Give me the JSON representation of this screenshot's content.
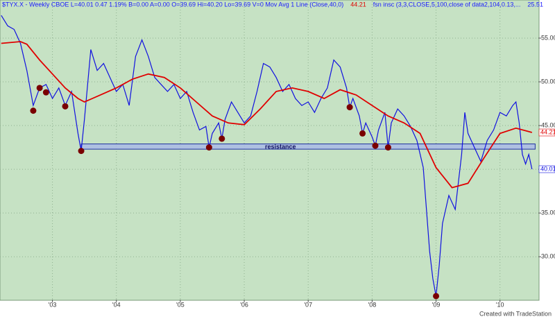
{
  "chart_data": {
    "type": "line",
    "header": [
      {
        "text": "$TYX.X - Weekly  CBOE  L=40.01  0.47  1.19%  B=0.00  A=0.00  O=39.69  Hi=40.20  Lo=39.69  V=0  Mov Avg 1 Line (Close,40,0)",
        "color": "#1a1aff"
      },
      {
        "text": "44.21",
        "color": "#e00000"
      },
      {
        "text": "fsn insc (3,3,CLOSE,5,100,close of data2,104,0.13,...",
        "color": "#1a1aff"
      },
      {
        "text": "25.51",
        "color": "#1a1aff"
      }
    ],
    "footer": "Created with TradeStation",
    "xlim": [
      2002.18,
      2010.6
    ],
    "xticks": [
      {
        "value": 2003,
        "label": "'03"
      },
      {
        "value": 2004,
        "label": "'04"
      },
      {
        "value": 2005,
        "label": "'05"
      },
      {
        "value": 2006,
        "label": "'06"
      },
      {
        "value": 2007,
        "label": "'07"
      },
      {
        "value": 2008,
        "label": "'08"
      },
      {
        "value": 2009,
        "label": "'09"
      },
      {
        "value": 2010,
        "label": "'10"
      }
    ],
    "ylim": [
      25.1,
      59.2
    ],
    "yticks": [
      {
        "value": 30,
        "label": "30.00"
      },
      {
        "value": 35,
        "label": "35.00"
      },
      {
        "value": 40,
        "label": "40.00"
      },
      {
        "value": 45,
        "label": "45.00"
      },
      {
        "value": 50,
        "label": "50.00"
      },
      {
        "value": 55,
        "label": "55.00"
      }
    ],
    "grid": true,
    "series": [
      {
        "name": "$TYX.X",
        "color": "#1010e0",
        "last_label": "40.01",
        "x": [
          2002.2,
          2002.3,
          2002.4,
          2002.5,
          2002.6,
          2002.7,
          2002.8,
          2002.9,
          2003.0,
          2003.1,
          2003.2,
          2003.3,
          2003.4,
          2003.45,
          2003.5,
          2003.6,
          2003.7,
          2003.8,
          2003.9,
          2004.0,
          2004.1,
          2004.2,
          2004.3,
          2004.4,
          2004.5,
          2004.6,
          2004.7,
          2004.8,
          2004.9,
          2005.0,
          2005.1,
          2005.2,
          2005.3,
          2005.4,
          2005.45,
          2005.5,
          2005.6,
          2005.65,
          2005.7,
          2005.8,
          2005.9,
          2006.0,
          2006.1,
          2006.2,
          2006.3,
          2006.4,
          2006.5,
          2006.6,
          2006.7,
          2006.8,
          2006.9,
          2007.0,
          2007.1,
          2007.2,
          2007.3,
          2007.4,
          2007.5,
          2007.6,
          2007.65,
          2007.7,
          2007.8,
          2007.85,
          2007.9,
          2008.0,
          2008.05,
          2008.1,
          2008.2,
          2008.25,
          2008.3,
          2008.4,
          2008.5,
          2008.6,
          2008.7,
          2008.8,
          2008.85,
          2008.9,
          2008.95,
          2009.0,
          2009.05,
          2009.1,
          2009.2,
          2009.3,
          2009.4,
          2009.45,
          2009.5,
          2009.6,
          2009.7,
          2009.8,
          2009.9,
          2010.0,
          2010.1,
          2010.2,
          2010.25,
          2010.3,
          2010.35,
          2010.4,
          2010.45,
          2010.5
        ],
        "values": [
          57.6,
          56.4,
          56.0,
          54.4,
          51.3,
          47.3,
          49.3,
          49.7,
          48.1,
          49.3,
          47.3,
          48.9,
          44.1,
          42.1,
          45.7,
          53.7,
          51.3,
          52.1,
          50.5,
          48.9,
          49.7,
          47.3,
          52.9,
          54.8,
          52.9,
          50.5,
          49.7,
          48.9,
          49.7,
          48.1,
          48.9,
          46.5,
          44.5,
          44.9,
          42.5,
          44.1,
          45.3,
          43.5,
          45.7,
          47.7,
          46.5,
          45.3,
          46.1,
          48.9,
          52.1,
          51.7,
          50.5,
          48.9,
          49.7,
          48.1,
          47.3,
          47.7,
          46.5,
          48.1,
          49.3,
          52.5,
          51.7,
          49.3,
          47.1,
          48.1,
          46.1,
          44.1,
          45.3,
          43.7,
          42.7,
          44.5,
          46.5,
          42.5,
          45.3,
          46.9,
          46.1,
          44.9,
          43.3,
          40.2,
          35.4,
          30.6,
          27.5,
          25.5,
          29.0,
          33.8,
          37.0,
          35.4,
          41.7,
          46.5,
          44.1,
          42.5,
          40.9,
          43.3,
          44.5,
          46.5,
          46.1,
          47.3,
          47.7,
          45.3,
          41.7,
          40.6,
          41.7,
          40.01
        ]
      },
      {
        "name": "Mov Avg 1 Line",
        "color": "#e00000",
        "last_label": "44.21",
        "x": [
          2002.2,
          2002.5,
          2002.6,
          2002.8,
          2003.0,
          2003.2,
          2003.4,
          2003.5,
          2003.75,
          2004.0,
          2004.25,
          2004.5,
          2004.75,
          2005.0,
          2005.25,
          2005.5,
          2005.75,
          2006.0,
          2006.25,
          2006.5,
          2006.75,
          2007.0,
          2007.25,
          2007.5,
          2007.75,
          2008.0,
          2008.25,
          2008.5,
          2008.75,
          2009.0,
          2009.25,
          2009.5,
          2009.75,
          2010.0,
          2010.25,
          2010.5
        ],
        "values": [
          54.4,
          54.6,
          54.3,
          52.5,
          50.9,
          49.3,
          48.1,
          47.7,
          48.5,
          49.3,
          50.3,
          50.9,
          50.5,
          49.3,
          47.7,
          46.1,
          45.3,
          45.1,
          46.9,
          48.9,
          49.3,
          48.9,
          48.1,
          49.1,
          48.5,
          47.3,
          46.1,
          45.3,
          44.1,
          40.2,
          37.9,
          38.4,
          41.3,
          44.1,
          44.7,
          44.21
        ]
      }
    ],
    "markers": {
      "color": "#7a0000",
      "x": [
        2002.7,
        2002.8,
        2002.9,
        2003.2,
        2003.45,
        2005.45,
        2005.65,
        2007.65,
        2007.85,
        2008.05,
        2008.25,
        2009.0
      ],
      "values": [
        46.7,
        49.3,
        48.8,
        47.2,
        42.1,
        42.5,
        43.5,
        47.1,
        44.1,
        42.7,
        42.5,
        25.5
      ]
    },
    "resistance": {
      "label": "resistance",
      "low": 42.3,
      "high": 42.9,
      "x": [
        2003.45,
        2010.55
      ]
    }
  }
}
